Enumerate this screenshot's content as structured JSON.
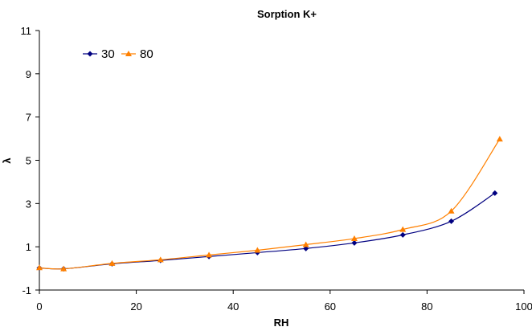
{
  "chart_data": {
    "type": "line",
    "title": "Sorption K+",
    "xlabel": "RH",
    "ylabel": "λ",
    "xlim": [
      0,
      100
    ],
    "ylim": [
      -1,
      11
    ],
    "xticks": [
      0,
      20,
      40,
      60,
      80,
      100
    ],
    "yticks": [
      -1,
      1,
      3,
      5,
      7,
      9,
      11
    ],
    "grid": false,
    "legend_position": "top-left",
    "series": [
      {
        "name": "30",
        "color": "#000080",
        "marker": "diamond",
        "x": [
          0,
          5,
          15,
          25,
          35,
          45,
          55,
          65,
          75,
          85,
          94
        ],
        "y": [
          0.02,
          -0.02,
          0.21,
          0.37,
          0.55,
          0.73,
          0.92,
          1.18,
          1.55,
          2.18,
          3.48
        ]
      },
      {
        "name": "80",
        "color": "#FF8000",
        "marker": "triangle",
        "x": [
          0,
          5,
          15,
          25,
          35,
          45,
          55,
          65,
          75,
          85,
          95
        ],
        "y": [
          0.03,
          -0.02,
          0.23,
          0.4,
          0.62,
          0.84,
          1.1,
          1.38,
          1.8,
          2.65,
          5.98
        ]
      }
    ]
  }
}
